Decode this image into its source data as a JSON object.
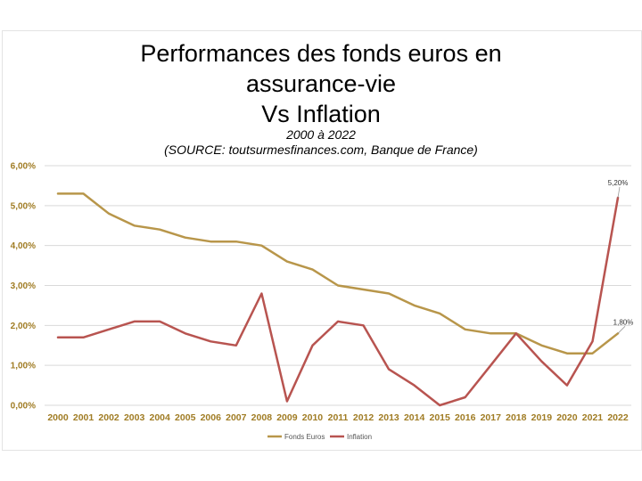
{
  "chart_data": {
    "type": "line",
    "title_lines": [
      "Performances des fonds euros en",
      "assurance-vie",
      "Vs Inflation"
    ],
    "subtitle_lines": [
      "2000 à 2022",
      "(SOURCE: toutsurmesfinances.com, Banque de France)"
    ],
    "categories": [
      "2000",
      "2001",
      "2002",
      "2003",
      "2004",
      "2005",
      "2006",
      "2007",
      "2008",
      "2009",
      "2010",
      "2011",
      "2012",
      "2013",
      "2014",
      "2015",
      "2016",
      "2017",
      "2018",
      "2019",
      "2020",
      "2021",
      "2022"
    ],
    "yticks": [
      "0,00%",
      "1,00%",
      "2,00%",
      "3,00%",
      "4,00%",
      "5,00%",
      "6,00%"
    ],
    "ylim": [
      0,
      6
    ],
    "grid": true,
    "legend_position": "bottom",
    "series": [
      {
        "name": "Fonds Euros",
        "color": "#b8964a",
        "values": [
          5.3,
          5.3,
          4.8,
          4.5,
          4.4,
          4.2,
          4.1,
          4.1,
          4.0,
          3.6,
          3.4,
          3.0,
          2.9,
          2.8,
          2.5,
          2.3,
          1.9,
          1.8,
          1.8,
          1.5,
          1.3,
          1.3,
          1.8
        ],
        "end_label": "1,80%"
      },
      {
        "name": "Inflation",
        "color": "#b85450",
        "values": [
          1.7,
          1.7,
          1.9,
          2.1,
          2.1,
          1.8,
          1.6,
          1.5,
          2.8,
          0.1,
          1.5,
          2.1,
          2.0,
          0.9,
          0.5,
          0.0,
          0.2,
          1.0,
          1.8,
          1.1,
          0.5,
          1.6,
          5.2
        ],
        "end_label": "5,20%"
      }
    ]
  }
}
